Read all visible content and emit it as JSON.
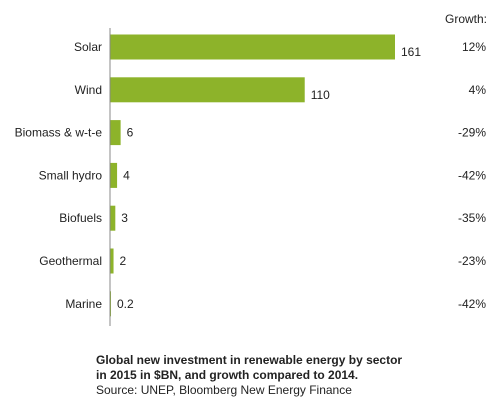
{
  "chart_data": {
    "type": "bar",
    "orientation": "horizontal",
    "categories": [
      "Solar",
      "Wind",
      "Biomass & w-t-e",
      "Small hydro",
      "Biofuels",
      "Geothermal",
      "Marine"
    ],
    "values": [
      161,
      110,
      6,
      4,
      3,
      2,
      0.2
    ],
    "value_labels": [
      "161",
      "110",
      "6",
      "4",
      "3",
      "2",
      "0.2"
    ],
    "growth_header": "Growth:",
    "growth": [
      "12%",
      "4%",
      "-29%",
      "-42%",
      "-35%",
      "-23%",
      "-42%"
    ],
    "bar_color": "#8db32a",
    "xlim": [
      0,
      161
    ],
    "grid": false
  },
  "caption": {
    "line1": "Global new investment in renewable energy by sector",
    "line2": "in 2015 in $BN, and growth compared to 2014.",
    "line3": "Source: UNEP, Bloomberg New Energy Finance"
  }
}
